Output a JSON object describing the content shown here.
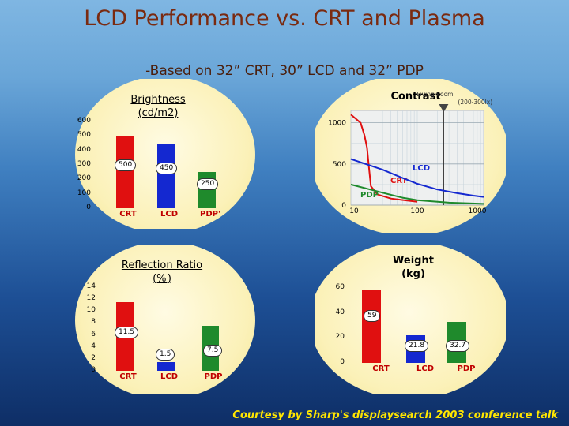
{
  "slide": {
    "title": "LCD Performance vs. CRT and Plasma",
    "subtitle": "-Based on 32” CRT, 30” LCD and 32” PDP",
    "footer": "Courtesy by Sharp's displaysearch 2003 conference talk"
  },
  "colors": {
    "crt": "#e01010",
    "lcd": "#1428d0",
    "pdp": "#1f8a2c"
  },
  "chart_data": [
    {
      "type": "bar",
      "title": "Brightness (cd/m2)",
      "title_lines": [
        "Brightness",
        "(cd/m2)"
      ],
      "categories": [
        "CRT",
        "LCD",
        "PDP"
      ],
      "category_labels": [
        "CRT",
        "LCD",
        "PDP'"
      ],
      "values": [
        500,
        450,
        250
      ],
      "yticks": [
        0,
        100,
        200,
        300,
        400,
        500,
        600
      ],
      "ylim": [
        0,
        600
      ],
      "grid": false
    },
    {
      "type": "line",
      "title": "Contrast",
      "series": [
        {
          "name": "CRT",
          "color": "#e01010",
          "x": [
            10,
            14,
            16,
            17.5,
            18.5,
            20,
            25,
            40,
            100
          ],
          "y": [
            1100,
            1000,
            850,
            700,
            500,
            230,
            130,
            80,
            40
          ]
        },
        {
          "name": "LCD",
          "color": "#1428d0",
          "x": [
            10,
            30,
            60,
            100,
            200,
            400,
            700,
            1000
          ],
          "y": [
            560,
            430,
            330,
            260,
            190,
            145,
            115,
            100
          ]
        },
        {
          "name": "PDP",
          "color": "#1f8a2c",
          "x": [
            10,
            30,
            60,
            100,
            300,
            1000
          ],
          "y": [
            250,
            150,
            90,
            60,
            30,
            15
          ]
        }
      ],
      "xscale": "log",
      "xticks": [
        10,
        100,
        1000
      ],
      "yticks": [
        0,
        500,
        1000
      ],
      "xlim": [
        10,
        1000
      ],
      "ylim": [
        0,
        1150
      ],
      "annotation": {
        "lines": [
          "Living Room",
          "(200-300lx)"
        ],
        "x": 250
      },
      "grid": true
    },
    {
      "type": "bar",
      "title": "Reflection Ratio (%)",
      "title_lines": [
        "Reflection Ratio",
        "(% )"
      ],
      "categories": [
        "CRT",
        "LCD",
        "PDP"
      ],
      "values": [
        11.5,
        1.5,
        7.5
      ],
      "value_labels": [
        "11.5",
        "1.5",
        "7.5"
      ],
      "yticks": [
        0,
        2,
        4,
        6,
        8,
        10,
        12,
        14
      ],
      "ylim": [
        0,
        14
      ],
      "grid": false
    },
    {
      "type": "bar",
      "title": "Weight (kg)",
      "title_lines": [
        "Weight",
        "(kg)"
      ],
      "categories": [
        "CRT",
        "LCD",
        "PDP"
      ],
      "values": [
        59,
        21.8,
        32.7
      ],
      "value_labels": [
        "59",
        "21.8",
        "32.7"
      ],
      "yticks": [
        0,
        20,
        40,
        60
      ],
      "ylim": [
        0,
        60
      ],
      "grid": false
    }
  ]
}
